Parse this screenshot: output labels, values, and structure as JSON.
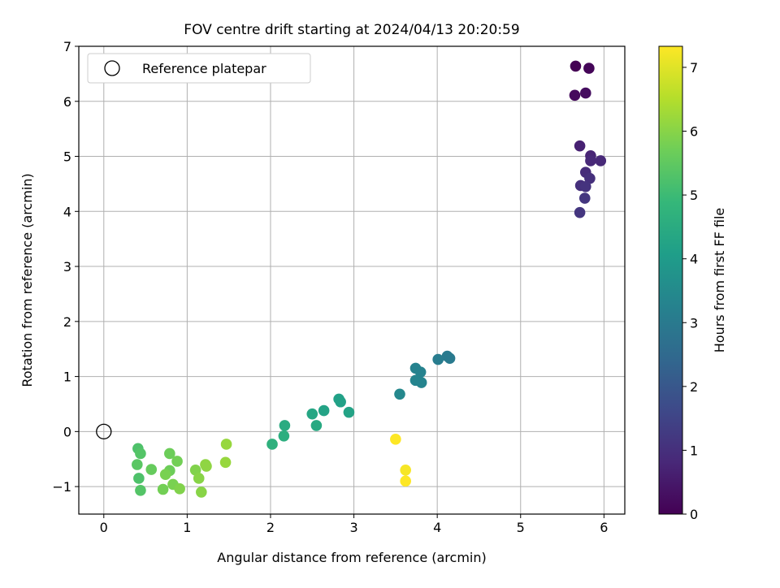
{
  "chart_data": {
    "type": "scatter",
    "title": "FOV centre drift starting at 2024/04/13 20:20:59",
    "xlabel": "Angular distance from reference (arcmin)",
    "ylabel": "Rotation from reference (arcmin)",
    "xlim": [
      -0.3,
      6.25
    ],
    "ylim": [
      -1.5,
      7.0
    ],
    "xticks": [
      0,
      1,
      2,
      3,
      4,
      5,
      6
    ],
    "yticks": [
      -1,
      0,
      1,
      2,
      3,
      4,
      5,
      6,
      7
    ],
    "grid": true,
    "legend": {
      "position": "top-left",
      "entries": [
        "Reference platepar"
      ]
    },
    "reference_point": {
      "x": 0,
      "y": 0
    },
    "colorbar": {
      "label": "Hours from first FF file",
      "colormap": "viridis",
      "range": [
        0,
        7.33
      ],
      "ticks": [
        0,
        1,
        2,
        3,
        4,
        5,
        6,
        7
      ]
    },
    "points": [
      {
        "x": 5.66,
        "y": 6.64,
        "c": 0.0
      },
      {
        "x": 5.82,
        "y": 6.6,
        "c": 0.08
      },
      {
        "x": 5.65,
        "y": 6.11,
        "c": 0.17
      },
      {
        "x": 5.78,
        "y": 6.15,
        "c": 0.25
      },
      {
        "x": 5.71,
        "y": 5.19,
        "c": 0.67
      },
      {
        "x": 5.84,
        "y": 5.01,
        "c": 0.75
      },
      {
        "x": 5.84,
        "y": 4.92,
        "c": 0.83
      },
      {
        "x": 5.96,
        "y": 4.92,
        "c": 0.83
      },
      {
        "x": 5.78,
        "y": 4.71,
        "c": 0.92
      },
      {
        "x": 5.83,
        "y": 4.6,
        "c": 1.0
      },
      {
        "x": 5.72,
        "y": 4.47,
        "c": 1.0
      },
      {
        "x": 5.78,
        "y": 4.45,
        "c": 1.08
      },
      {
        "x": 5.77,
        "y": 4.24,
        "c": 1.17
      },
      {
        "x": 5.71,
        "y": 3.98,
        "c": 1.17
      },
      {
        "x": 4.12,
        "y": 1.37,
        "c": 3.0
      },
      {
        "x": 4.15,
        "y": 1.33,
        "c": 3.0
      },
      {
        "x": 4.01,
        "y": 1.31,
        "c": 3.08
      },
      {
        "x": 3.74,
        "y": 1.15,
        "c": 3.25
      },
      {
        "x": 3.8,
        "y": 1.08,
        "c": 3.25
      },
      {
        "x": 3.74,
        "y": 0.93,
        "c": 3.33
      },
      {
        "x": 3.81,
        "y": 0.89,
        "c": 3.33
      },
      {
        "x": 3.55,
        "y": 0.68,
        "c": 3.42
      },
      {
        "x": 2.82,
        "y": 0.59,
        "c": 4.17
      },
      {
        "x": 2.84,
        "y": 0.54,
        "c": 4.17
      },
      {
        "x": 2.64,
        "y": 0.38,
        "c": 4.25
      },
      {
        "x": 2.94,
        "y": 0.35,
        "c": 4.25
      },
      {
        "x": 2.5,
        "y": 0.32,
        "c": 4.33
      },
      {
        "x": 2.17,
        "y": 0.11,
        "c": 4.5
      },
      {
        "x": 2.55,
        "y": 0.11,
        "c": 4.42
      },
      {
        "x": 2.16,
        "y": -0.08,
        "c": 4.58
      },
      {
        "x": 2.02,
        "y": -0.23,
        "c": 4.67
      },
      {
        "x": 1.47,
        "y": -0.23,
        "c": 6.17
      },
      {
        "x": 1.46,
        "y": -0.56,
        "c": 6.17
      },
      {
        "x": 1.22,
        "y": -0.6,
        "c": 6.08
      },
      {
        "x": 1.23,
        "y": -0.63,
        "c": 6.08
      },
      {
        "x": 1.1,
        "y": -0.7,
        "c": 5.92
      },
      {
        "x": 1.14,
        "y": -0.85,
        "c": 6.0
      },
      {
        "x": 1.17,
        "y": -1.1,
        "c": 6.0
      },
      {
        "x": 0.79,
        "y": -0.4,
        "c": 5.67
      },
      {
        "x": 0.88,
        "y": -0.54,
        "c": 5.75
      },
      {
        "x": 0.79,
        "y": -0.71,
        "c": 5.67
      },
      {
        "x": 0.74,
        "y": -0.78,
        "c": 5.83
      },
      {
        "x": 0.83,
        "y": -0.96,
        "c": 5.83
      },
      {
        "x": 0.91,
        "y": -1.04,
        "c": 5.92
      },
      {
        "x": 0.71,
        "y": -1.05,
        "c": 5.75
      },
      {
        "x": 0.41,
        "y": -0.31,
        "c": 5.25
      },
      {
        "x": 0.44,
        "y": -0.4,
        "c": 5.33
      },
      {
        "x": 0.4,
        "y": -0.6,
        "c": 5.42
      },
      {
        "x": 0.57,
        "y": -0.69,
        "c": 5.58
      },
      {
        "x": 0.42,
        "y": -0.85,
        "c": 5.25
      },
      {
        "x": 0.44,
        "y": -1.07,
        "c": 5.33
      },
      {
        "x": 3.5,
        "y": -0.14,
        "c": 7.33
      },
      {
        "x": 3.62,
        "y": -0.7,
        "c": 7.25
      },
      {
        "x": 3.62,
        "y": -0.9,
        "c": 7.33
      }
    ]
  }
}
